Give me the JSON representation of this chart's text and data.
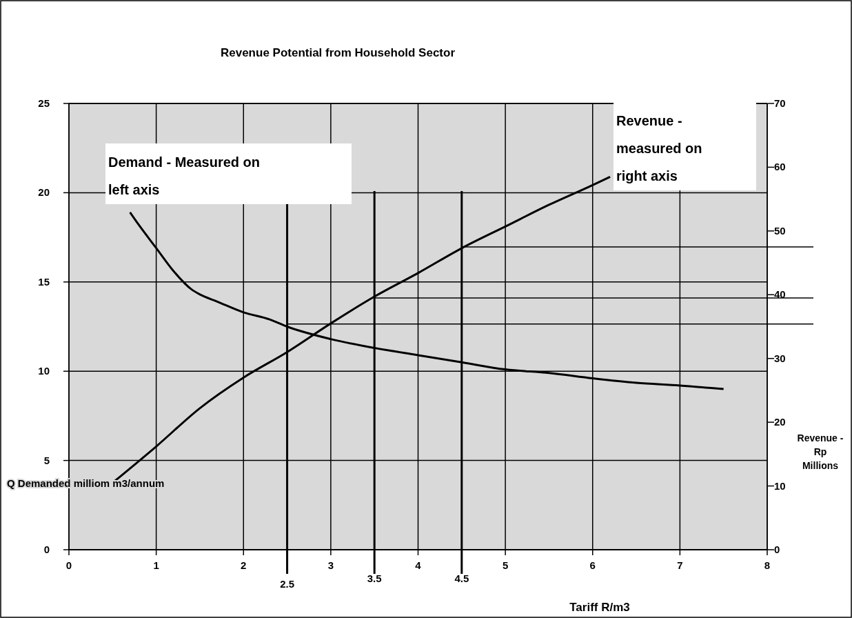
{
  "chart_data": {
    "type": "line",
    "title": "Revenue Potential from Household Sector",
    "xlabel": "Tariff R/m3",
    "ylabel": "Q Demanded  milliom m3/annum",
    "y2label": "Revenue - Rp Millions",
    "xlim": [
      0,
      8
    ],
    "xticks": [
      0,
      1,
      2,
      3,
      4,
      5,
      6,
      7,
      8
    ],
    "ylim": [
      0,
      25
    ],
    "yticks": [
      0,
      5,
      10,
      15,
      20,
      25
    ],
    "y2lim": [
      0,
      70
    ],
    "y2ticks": [
      0,
      10,
      20,
      30,
      40,
      50,
      60,
      70
    ],
    "grid": true,
    "legend": false,
    "marker": "none",
    "line_style": "solid",
    "series": [
      {
        "name": "Demand - Measured on left axis",
        "color": "#000000",
        "x": [
          0.7,
          0.8,
          1.0,
          1.2,
          1.4,
          1.5,
          1.7,
          2.0,
          2.3,
          2.5,
          3.0,
          3.5,
          4.0,
          4.5,
          5.0,
          5.5,
          6.0,
          6.5,
          7.0,
          7.5
        ],
        "values": [
          18.9,
          18.2,
          16.9,
          15.6,
          14.6,
          14.3,
          13.9,
          13.3,
          12.9,
          12.5,
          11.8,
          11.3,
          10.9,
          10.5,
          10.1,
          9.9,
          9.6,
          9.35,
          9.2,
          9.0
        ]
      },
      {
        "name": "Revenue - measured on right axis",
        "color": "#000000",
        "axis": "y2",
        "x": [
          0.5,
          1.0,
          1.5,
          2.0,
          2.5,
          3.0,
          3.5,
          4.0,
          4.5,
          5.0,
          5.5,
          6.0,
          6.2
        ],
        "values": [
          10.5,
          16.2,
          22.2,
          27,
          31,
          35.5,
          39.7,
          43.4,
          47.3,
          50.7,
          54.1,
          57.2,
          58.5
        ]
      }
    ],
    "ref_lines": [
      {
        "axis": "x",
        "value": 2.5,
        "label": "2.5"
      },
      {
        "axis": "x",
        "value": 3.5,
        "label": "3.5"
      },
      {
        "axis": "x",
        "value": 4.5,
        "label": "4.5"
      },
      {
        "axis": "y2",
        "value": 35.4
      },
      {
        "axis": "y2",
        "value": 39.5
      },
      {
        "axis": "y2",
        "value": 47.5
      }
    ]
  }
}
